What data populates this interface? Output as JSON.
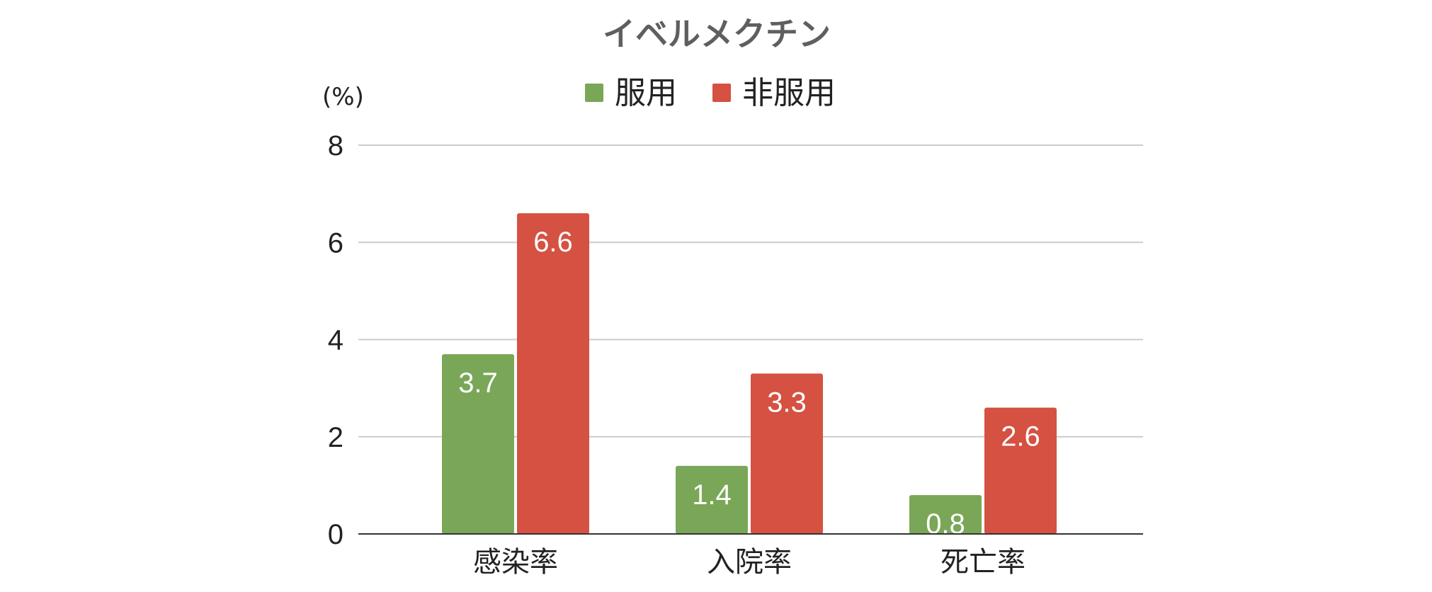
{
  "chart_data": {
    "type": "bar",
    "title": "イベルメクチン",
    "unit_label": "(%)",
    "categories": [
      "感染率",
      "入院率",
      "死亡率"
    ],
    "series": [
      {
        "name": "服用",
        "values": [
          3.7,
          1.4,
          0.8
        ],
        "color": "#7aa757"
      },
      {
        "name": "非服用",
        "values": [
          6.6,
          3.3,
          2.6
        ],
        "color": "#d55142"
      }
    ],
    "ylim": [
      0,
      8
    ],
    "yticks": [
      0,
      2,
      4,
      6,
      8
    ],
    "ytick_labels": [
      "0",
      "2",
      "4",
      "6",
      "8"
    ],
    "value_labels": [
      [
        "3.7",
        "1.4",
        "0.8"
      ],
      [
        "6.6",
        "3.3",
        "2.6"
      ]
    ],
    "grid": true,
    "legend_position": "top-center",
    "colors": {
      "grid": "#cccccc",
      "axis": "#333333"
    }
  }
}
